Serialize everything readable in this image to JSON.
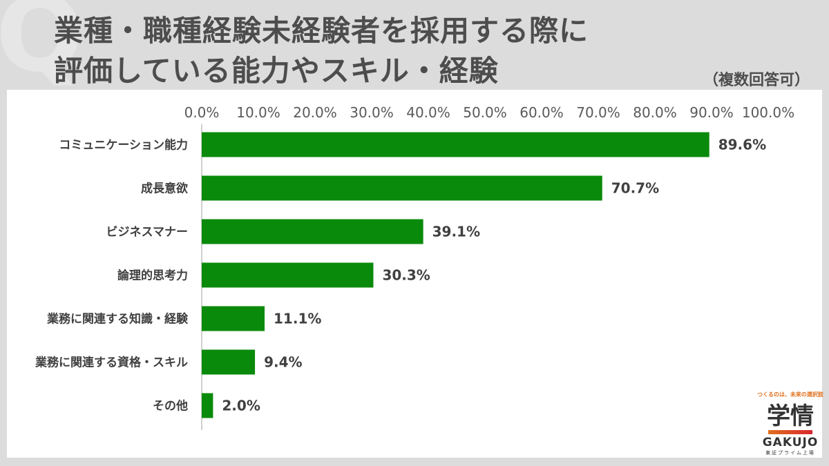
{
  "header": {
    "title_line1": "業種・職種経験未経験者を採用する際に",
    "title_line2": "評価している能力やスキル・経験",
    "note": "（複数回答可）",
    "q_mark": "Q"
  },
  "logo": {
    "tagline": "つくるのは、未来の選択肢",
    "mark": "学情",
    "brand": "GAKUJO",
    "sub": "東証プライム上場"
  },
  "colors": {
    "bar": "#0a8a0a",
    "background": "#dcdcdc",
    "panel": "#ffffff"
  },
  "chart_data": {
    "type": "bar",
    "orientation": "horizontal",
    "categories": [
      "コミュニケーション能力",
      "成長意欲",
      "ビジネスマナー",
      "論理的思考力",
      "業務に関連する知識・経験",
      "業務に関連する資格・スキル",
      "その他"
    ],
    "values": [
      89.6,
      70.7,
      39.1,
      30.3,
      11.1,
      9.4,
      2.0
    ],
    "value_labels": [
      "89.6%",
      "70.7%",
      "39.1%",
      "30.3%",
      "11.1%",
      "9.4%",
      "2.0%"
    ],
    "xlim": [
      0,
      100
    ],
    "ticks": [
      "0.0%",
      "10.0%",
      "20.0%",
      "30.0%",
      "40.0%",
      "50.0%",
      "60.0%",
      "70.0%",
      "80.0%",
      "90.0%",
      "100.0%"
    ],
    "axis_position": "top",
    "grid": false,
    "legend": "none"
  }
}
